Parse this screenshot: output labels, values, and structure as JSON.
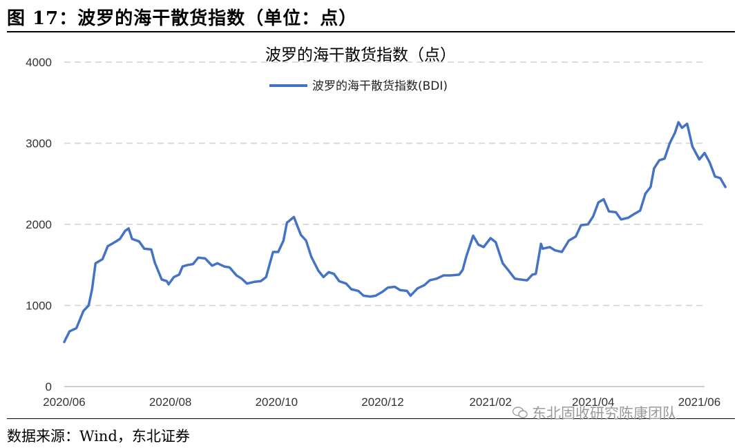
{
  "figure_title": "图 17：波罗的海干散货指数（单位：点）",
  "source": "数据来源：Wind，东北证券",
  "watermark": "东北固收研究陈康团队",
  "chart_data": {
    "type": "line",
    "title": "波罗的海干散货指数（点）",
    "xlabel": "",
    "ylabel": "",
    "ylim": [
      0,
      4000
    ],
    "yticks": [
      0,
      1000,
      2000,
      3000,
      4000
    ],
    "xlim": [
      "2020-06-01",
      "2021-06-04"
    ],
    "xticks": [
      "2020/06",
      "2020/08",
      "2020/10",
      "2020/12",
      "2021/02",
      "2021/04",
      "2021/06"
    ],
    "xtick_dates": [
      "2020-06-01",
      "2020-08-01",
      "2020-10-01",
      "2020-12-01",
      "2021-02-01",
      "2021-04-01",
      "2021-06-01"
    ],
    "grid": "horizontal-dashed",
    "legend": "top-center",
    "series": [
      {
        "name": "波罗的海干散货指数(BDI)",
        "color": "#4472C4",
        "points": [
          [
            "2020-06-01",
            550
          ],
          [
            "2020-06-04",
            680
          ],
          [
            "2020-06-08",
            720
          ],
          [
            "2020-06-12",
            930
          ],
          [
            "2020-06-15",
            1000
          ],
          [
            "2020-06-17",
            1200
          ],
          [
            "2020-06-19",
            1520
          ],
          [
            "2020-06-23",
            1570
          ],
          [
            "2020-06-26",
            1730
          ],
          [
            "2020-06-30",
            1780
          ],
          [
            "2020-07-03",
            1820
          ],
          [
            "2020-07-06",
            1920
          ],
          [
            "2020-07-08",
            1950
          ],
          [
            "2020-07-10",
            1820
          ],
          [
            "2020-07-14",
            1790
          ],
          [
            "2020-07-17",
            1700
          ],
          [
            "2020-07-21",
            1690
          ],
          [
            "2020-07-23",
            1530
          ],
          [
            "2020-07-27",
            1320
          ],
          [
            "2020-07-30",
            1300
          ],
          [
            "2020-07-31",
            1260
          ],
          [
            "2020-08-03",
            1350
          ],
          [
            "2020-08-06",
            1380
          ],
          [
            "2020-08-08",
            1480
          ],
          [
            "2020-08-11",
            1500
          ],
          [
            "2020-08-14",
            1510
          ],
          [
            "2020-08-17",
            1590
          ],
          [
            "2020-08-21",
            1580
          ],
          [
            "2020-08-25",
            1490
          ],
          [
            "2020-08-28",
            1520
          ],
          [
            "2020-09-01",
            1480
          ],
          [
            "2020-09-04",
            1470
          ],
          [
            "2020-09-08",
            1370
          ],
          [
            "2020-09-11",
            1330
          ],
          [
            "2020-09-14",
            1270
          ],
          [
            "2020-09-18",
            1290
          ],
          [
            "2020-09-22",
            1300
          ],
          [
            "2020-09-25",
            1350
          ],
          [
            "2020-09-29",
            1660
          ],
          [
            "2020-10-02",
            1660
          ],
          [
            "2020-10-05",
            1800
          ],
          [
            "2020-10-07",
            2020
          ],
          [
            "2020-10-11",
            2090
          ],
          [
            "2020-10-13",
            1980
          ],
          [
            "2020-10-15",
            1870
          ],
          [
            "2020-10-18",
            1800
          ],
          [
            "2020-10-21",
            1600
          ],
          [
            "2020-10-25",
            1430
          ],
          [
            "2020-10-28",
            1350
          ],
          [
            "2020-10-31",
            1410
          ],
          [
            "2020-11-03",
            1390
          ],
          [
            "2020-11-06",
            1300
          ],
          [
            "2020-11-10",
            1270
          ],
          [
            "2020-11-13",
            1200
          ],
          [
            "2020-11-17",
            1180
          ],
          [
            "2020-11-20",
            1120
          ],
          [
            "2020-11-24",
            1110
          ],
          [
            "2020-11-27",
            1120
          ],
          [
            "2020-12-01",
            1170
          ],
          [
            "2020-12-04",
            1220
          ],
          [
            "2020-12-08",
            1230
          ],
          [
            "2020-12-11",
            1190
          ],
          [
            "2020-12-15",
            1180
          ],
          [
            "2020-12-17",
            1120
          ],
          [
            "2020-12-21",
            1210
          ],
          [
            "2020-12-25",
            1250
          ],
          [
            "2020-12-28",
            1310
          ],
          [
            "2021-01-01",
            1330
          ],
          [
            "2021-01-05",
            1370
          ],
          [
            "2021-01-09",
            1370
          ],
          [
            "2021-01-14",
            1380
          ],
          [
            "2021-01-16",
            1440
          ],
          [
            "2021-01-18",
            1600
          ],
          [
            "2021-01-22",
            1860
          ],
          [
            "2021-01-25",
            1750
          ],
          [
            "2021-01-28",
            1720
          ],
          [
            "2021-02-01",
            1830
          ],
          [
            "2021-02-04",
            1780
          ],
          [
            "2021-02-08",
            1520
          ],
          [
            "2021-02-11",
            1440
          ],
          [
            "2021-02-15",
            1330
          ],
          [
            "2021-02-18",
            1320
          ],
          [
            "2021-02-22",
            1310
          ],
          [
            "2021-02-25",
            1380
          ],
          [
            "2021-02-27",
            1390
          ],
          [
            "2021-03-02",
            1760
          ],
          [
            "2021-03-03",
            1700
          ],
          [
            "2021-03-07",
            1720
          ],
          [
            "2021-03-10",
            1680
          ],
          [
            "2021-03-14",
            1660
          ],
          [
            "2021-03-18",
            1800
          ],
          [
            "2021-03-22",
            1850
          ],
          [
            "2021-03-25",
            1990
          ],
          [
            "2021-03-29",
            2000
          ],
          [
            "2021-04-01",
            2100
          ],
          [
            "2021-04-04",
            2270
          ],
          [
            "2021-04-07",
            2310
          ],
          [
            "2021-04-10",
            2160
          ],
          [
            "2021-04-14",
            2150
          ],
          [
            "2021-04-17",
            2060
          ],
          [
            "2021-04-21",
            2080
          ],
          [
            "2021-04-24",
            2120
          ],
          [
            "2021-04-28",
            2170
          ],
          [
            "2021-05-01",
            2380
          ],
          [
            "2021-05-04",
            2460
          ],
          [
            "2021-05-06",
            2690
          ],
          [
            "2021-05-09",
            2790
          ],
          [
            "2021-05-12",
            2810
          ],
          [
            "2021-05-15",
            3000
          ],
          [
            "2021-05-18",
            3130
          ],
          [
            "2021-05-20",
            3260
          ],
          [
            "2021-05-22",
            3190
          ],
          [
            "2021-05-25",
            3240
          ],
          [
            "2021-05-28",
            2960
          ],
          [
            "2021-06-01",
            2800
          ],
          [
            "2021-06-04",
            2880
          ],
          [
            "2021-06-07",
            2760
          ],
          [
            "2021-06-10",
            2590
          ],
          [
            "2021-06-13",
            2570
          ],
          [
            "2021-06-16",
            2460
          ]
        ]
      }
    ]
  }
}
